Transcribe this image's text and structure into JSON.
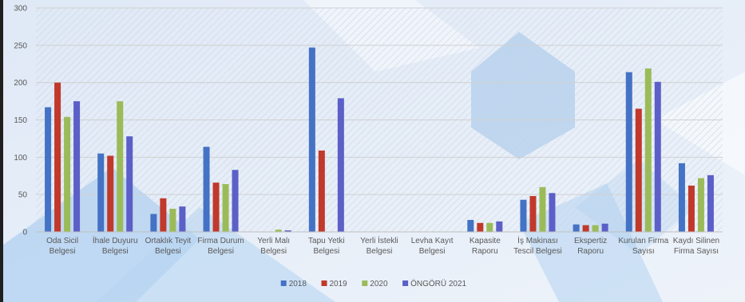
{
  "chart_data": {
    "type": "bar",
    "title": "",
    "xlabel": "",
    "ylabel": "",
    "ylim": [
      0,
      300
    ],
    "yticks": [
      0,
      50,
      100,
      150,
      200,
      250,
      300
    ],
    "grid": true,
    "legend_position": "bottom",
    "categories": [
      [
        "Oda Sicil",
        "Belgesi"
      ],
      [
        "İhale Duyuru",
        "Belgesi"
      ],
      [
        "Ortaklık Teyit",
        "Belgesi"
      ],
      [
        "Firma Durum",
        "Belgesi"
      ],
      [
        "Yerli Malı",
        "Belgesi"
      ],
      [
        "Tapu Yetki",
        "Belgesi"
      ],
      [
        "Yerli İstekli",
        "Belgesi"
      ],
      [
        "Levha Kayıt",
        "Belgesi"
      ],
      [
        "Kapasite",
        "Raporu"
      ],
      [
        "İş Makinası",
        "Tescil Belgesi"
      ],
      [
        "Ekspertiz",
        "Raporu"
      ],
      [
        "Kurulan Firma",
        "Sayısı"
      ],
      [
        "Kaydı Silinen",
        "Firma Sayısı"
      ]
    ],
    "series": [
      {
        "name": "2018",
        "color": "#4472c4",
        "values": [
          167,
          105,
          24,
          114,
          0,
          247,
          0,
          0,
          16,
          43,
          10,
          214,
          92
        ]
      },
      {
        "name": "2019",
        "color": "#c0392b",
        "values": [
          200,
          102,
          45,
          66,
          0,
          109,
          0,
          0,
          12,
          48,
          9,
          165,
          62
        ]
      },
      {
        "name": "2020",
        "color": "#9bbb59",
        "values": [
          154,
          175,
          31,
          64,
          3,
          0,
          0,
          0,
          12,
          60,
          9,
          219,
          72
        ]
      },
      {
        "name": "ÖNGÖRÜ 2021",
        "color": "#5b5fc7",
        "values": [
          175,
          128,
          34,
          83,
          2,
          179,
          0,
          0,
          14,
          52,
          11,
          201,
          76
        ]
      }
    ]
  }
}
